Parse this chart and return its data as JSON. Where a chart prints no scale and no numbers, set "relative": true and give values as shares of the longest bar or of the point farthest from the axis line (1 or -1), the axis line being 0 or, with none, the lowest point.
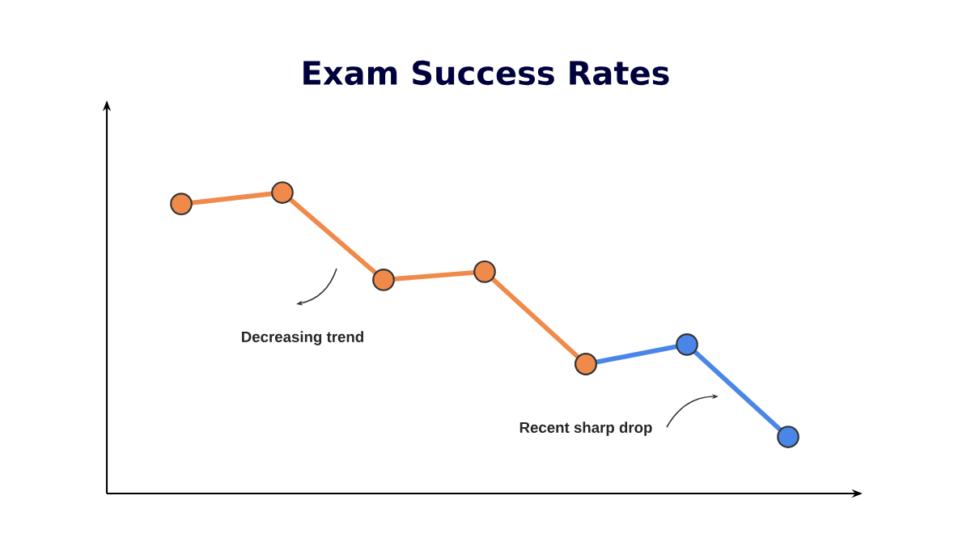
{
  "chart_data": {
    "type": "line",
    "title": "Exam Success Rates",
    "relative": true,
    "marker": "circle",
    "line_style": "solid",
    "categories": [
      null,
      null,
      null,
      null,
      null,
      null,
      null
    ],
    "series": [
      {
        "color": "#4a86e8",
        "values": [
          null,
          null,
          null,
          null,
          0.43,
          0.495,
          0.188
        ]
      },
      {
        "color": "#f08a4b",
        "values": [
          0.962,
          1,
          0.71,
          0.737,
          0.43,
          null,
          null
        ]
      }
    ],
    "annotations": [
      "Decreasing trend",
      "Recent sharp drop"
    ]
  }
}
